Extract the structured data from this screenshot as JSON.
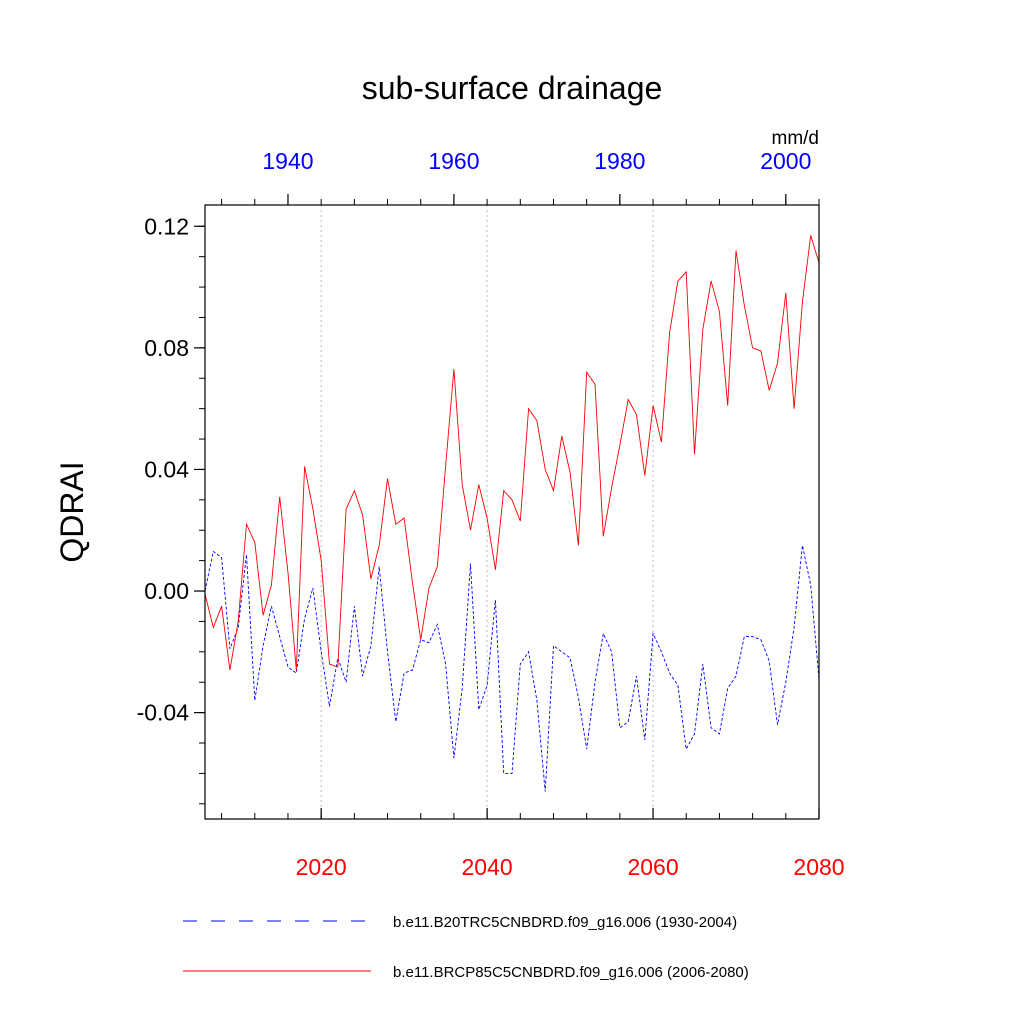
{
  "chart_data": {
    "type": "line",
    "title": "sub-surface drainage",
    "ylabel": "QDRAI",
    "units": "mm/d",
    "ylim": [
      -0.075,
      0.127
    ],
    "y_ticks": [
      -0.04,
      0.0,
      0.04,
      0.08,
      0.12
    ],
    "y_tick_labels": [
      "-0.04",
      "0.00",
      "0.04",
      "0.08",
      "0.12"
    ],
    "y_minor_step": 0.01,
    "bottom_axis": {
      "xlim": [
        2006,
        2080
      ],
      "ticks": [
        2020,
        2040,
        2060,
        2080
      ],
      "tick_labels": [
        "2020",
        "2040",
        "2060",
        "2080"
      ],
      "color": "#ff0000",
      "minor_step": 4
    },
    "top_axis": {
      "xlim": [
        1930,
        2004
      ],
      "ticks": [
        1940,
        1960,
        1980,
        2000
      ],
      "tick_labels": [
        "1940",
        "1960",
        "1980",
        "2000"
      ],
      "color": "#0000ff",
      "minor_step": 4
    },
    "gridlines_x": [
      2020,
      2040,
      2060
    ],
    "series": [
      {
        "name": "b.e11.B20TRC5CNBDRD.f09_g16.006 (1930-2004)",
        "axis": "top",
        "color": "#0000ff",
        "dash": "dashed",
        "x": [
          1930,
          1931,
          1932,
          1933,
          1934,
          1935,
          1936,
          1937,
          1938,
          1939,
          1940,
          1941,
          1942,
          1943,
          1944,
          1945,
          1946,
          1947,
          1948,
          1949,
          1950,
          1951,
          1952,
          1953,
          1954,
          1955,
          1956,
          1957,
          1958,
          1959,
          1960,
          1961,
          1962,
          1963,
          1964,
          1965,
          1966,
          1967,
          1968,
          1969,
          1970,
          1971,
          1972,
          1973,
          1974,
          1975,
          1976,
          1977,
          1978,
          1979,
          1980,
          1981,
          1982,
          1983,
          1984,
          1985,
          1986,
          1987,
          1988,
          1989,
          1990,
          1991,
          1992,
          1993,
          1994,
          1995,
          1996,
          1997,
          1998,
          1999,
          2000,
          2001,
          2002,
          2003,
          2004
        ],
        "values": [
          0.0,
          0.013,
          0.011,
          -0.019,
          -0.012,
          0.012,
          -0.036,
          -0.018,
          -0.005,
          -0.015,
          -0.025,
          -0.027,
          -0.009,
          0.001,
          -0.02,
          -0.038,
          -0.022,
          -0.03,
          -0.005,
          -0.028,
          -0.018,
          0.008,
          -0.02,
          -0.043,
          -0.027,
          -0.026,
          -0.016,
          -0.017,
          -0.011,
          -0.024,
          -0.055,
          -0.032,
          0.009,
          -0.039,
          -0.031,
          -0.003,
          -0.06,
          -0.06,
          -0.024,
          -0.02,
          -0.036,
          -0.066,
          -0.018,
          -0.02,
          -0.022,
          -0.035,
          -0.052,
          -0.03,
          -0.014,
          -0.02,
          -0.045,
          -0.043,
          -0.028,
          -0.049,
          -0.014,
          -0.02,
          -0.027,
          -0.031,
          -0.052,
          -0.047,
          -0.024,
          -0.045,
          -0.047,
          -0.032,
          -0.028,
          -0.015,
          -0.015,
          -0.016,
          -0.023,
          -0.044,
          -0.03,
          -0.012,
          0.015,
          0.002,
          -0.029
        ]
      },
      {
        "name": "b.e11.BRCP85C5CNBDRD.f09_g16.006 (2006-2080)",
        "axis": "bottom",
        "color": "#ff0000",
        "dash": "solid",
        "x": [
          2006,
          2007,
          2008,
          2009,
          2010,
          2011,
          2012,
          2013,
          2014,
          2015,
          2016,
          2017,
          2018,
          2019,
          2020,
          2021,
          2022,
          2023,
          2024,
          2025,
          2026,
          2027,
          2028,
          2029,
          2030,
          2031,
          2032,
          2033,
          2034,
          2035,
          2036,
          2037,
          2038,
          2039,
          2040,
          2041,
          2042,
          2043,
          2044,
          2045,
          2046,
          2047,
          2048,
          2049,
          2050,
          2051,
          2052,
          2053,
          2054,
          2055,
          2056,
          2057,
          2058,
          2059,
          2060,
          2061,
          2062,
          2063,
          2064,
          2065,
          2066,
          2067,
          2068,
          2069,
          2070,
          2071,
          2072,
          2073,
          2074,
          2075,
          2076,
          2077,
          2078,
          2079,
          2080
        ],
        "values": [
          -0.001,
          -0.012,
          -0.005,
          -0.026,
          -0.01,
          0.022,
          0.016,
          -0.008,
          0.002,
          0.031,
          0.006,
          -0.026,
          0.041,
          0.027,
          0.01,
          -0.024,
          -0.025,
          0.027,
          0.033,
          0.025,
          0.004,
          0.015,
          0.037,
          0.022,
          0.024,
          0.003,
          -0.016,
          0.001,
          0.008,
          0.041,
          0.073,
          0.035,
          0.02,
          0.035,
          0.024,
          0.007,
          0.033,
          0.03,
          0.023,
          0.06,
          0.056,
          0.04,
          0.033,
          0.051,
          0.039,
          0.015,
          0.072,
          0.068,
          0.018,
          0.034,
          0.048,
          0.063,
          0.058,
          0.038,
          0.061,
          0.049,
          0.085,
          0.102,
          0.105,
          0.045,
          0.086,
          0.102,
          0.092,
          0.061,
          0.112,
          0.094,
          0.08,
          0.079,
          0.066,
          0.075,
          0.098,
          0.06,
          0.095,
          0.117,
          0.108
        ]
      }
    ]
  }
}
